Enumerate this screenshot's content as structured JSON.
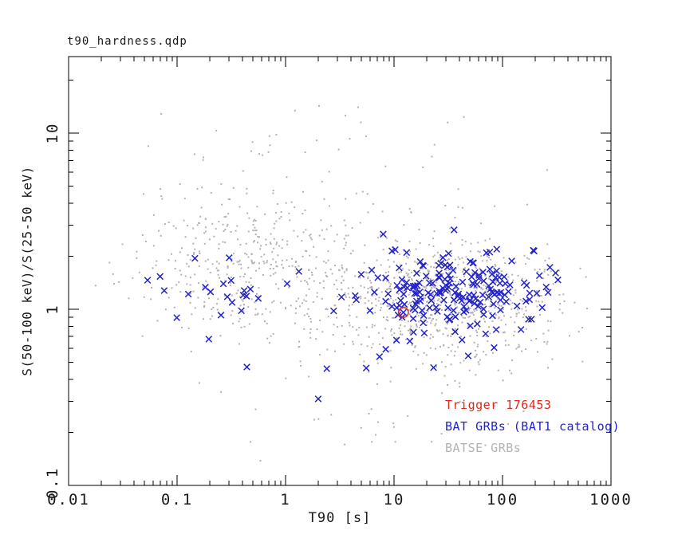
{
  "chart_data": {
    "type": "scatter",
    "title": "t90_hardness.qdp",
    "xlabel": "T90 [s]",
    "ylabel": "S(50-100 keV)/S(25-50 keV)",
    "xscale": "log",
    "yscale": "log",
    "xlim": [
      0.01,
      1000
    ],
    "ylim": [
      0.1,
      27.2
    ],
    "grid": false,
    "x_tick_labels": [
      "0.01",
      "0.1",
      "1",
      "10",
      "100",
      "1000"
    ],
    "x_tick_values": [
      0.01,
      0.1,
      1,
      10,
      100,
      1000
    ],
    "y_tick_labels": [
      "0.1",
      "1",
      "10"
    ],
    "y_tick_values": [
      0.1,
      1,
      10
    ],
    "frame_color": "#000000",
    "legend": {
      "position": "lower-right-inside",
      "entries": [
        {
          "label": "Trigger 176453",
          "color": "#e2281a"
        },
        {
          "label": "BAT GRBs (BAT1 catalog)",
          "color": "#2323cc"
        },
        {
          "label": "BATSE GRBs",
          "color": "#b3b3b3"
        }
      ]
    },
    "series": [
      {
        "name": "BATSE GRBs",
        "marker": "dot",
        "color": "#b3b3b3",
        "count": 1300,
        "seed": 101,
        "clusters": [
          {
            "w": 0.58,
            "mx": 1.5,
            "sx": 0.52,
            "my": 0.05,
            "sy": 0.17,
            "clip": [
              -0.2,
              2.86,
              -0.72,
              0.62
            ]
          },
          {
            "w": 0.27,
            "mx": -0.42,
            "sx": 0.5,
            "my": 0.26,
            "sy": 0.21,
            "clip": [
              -1.78,
              0.45,
              -0.5,
              0.95
            ]
          },
          {
            "w": 0.08,
            "mx": 0.55,
            "sx": 0.45,
            "my": 0.12,
            "sy": 0.22,
            "clip": [
              -0.5,
              1.3,
              -0.6,
              0.8
            ]
          },
          {
            "w": 0.045,
            "mx": 0.2,
            "sx": 1.0,
            "my": 0.72,
            "sy": 0.3,
            "clip": [
              -1.5,
              2.5,
              0.5,
              1.4
            ]
          },
          {
            "w": 0.025,
            "mx": 0.8,
            "sx": 0.9,
            "my": -0.55,
            "sy": 0.18,
            "clip": [
              -1.2,
              2.5,
              -0.87,
              -0.38
            ]
          }
        ]
      },
      {
        "name": "BAT GRBs (BAT1 catalog)",
        "marker": "x",
        "color": "#2323cc",
        "count": 218,
        "seed": 202,
        "clusters": [
          {
            "w": 0.87,
            "mx": 1.62,
            "sx": 0.46,
            "my": 0.105,
            "sy": 0.115,
            "clip": [
              0.3,
              2.83,
              -0.33,
              0.46
            ]
          },
          {
            "w": 0.1,
            "mx": -0.55,
            "sx": 0.42,
            "my": 0.13,
            "sy": 0.14,
            "clip": [
              -1.45,
              0.15,
              -0.2,
              0.42
            ]
          },
          {
            "w": 0.03,
            "mx": 1.15,
            "sx": 0.6,
            "my": -0.25,
            "sy": 0.13,
            "clip": [
              0.3,
              2.3,
              -0.45,
              -0.1
            ]
          }
        ],
        "extra_points": [
          [
            0.44,
            0.47
          ],
          [
            2.4,
            0.46
          ],
          [
            2.0,
            0.31
          ]
        ]
      },
      {
        "name": "Trigger 176453",
        "marker": "circled-x",
        "ring_color": "#e2281a",
        "x_color": "#2323cc",
        "points": [
          [
            12.2,
            0.96
          ]
        ]
      }
    ]
  }
}
